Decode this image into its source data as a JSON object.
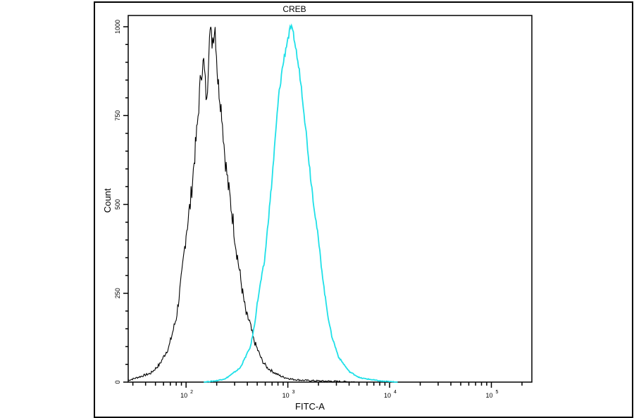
{
  "chart_data": {
    "type": "line",
    "title": "CREB",
    "xlabel": "FITC-A",
    "ylabel": "Count",
    "x_scale": "log",
    "xlim": [
      27,
      250000
    ],
    "ylim": [
      0,
      1000
    ],
    "x_ticks": [
      {
        "value": 100,
        "label": "10",
        "exp": "2"
      },
      {
        "value": 1000,
        "label": "10",
        "exp": "3"
      },
      {
        "value": 10000,
        "label": "10",
        "exp": "4"
      },
      {
        "value": 100000,
        "label": "10",
        "exp": "5"
      }
    ],
    "y_ticks": [
      "0",
      "250",
      "500",
      "750",
      "1000"
    ],
    "grid": false,
    "series": [
      {
        "color": "#000000",
        "points": [
          [
            27,
            5
          ],
          [
            35,
            15
          ],
          [
            45,
            25
          ],
          [
            55,
            50
          ],
          [
            68,
            100
          ],
          [
            80,
            180
          ],
          [
            91,
            300
          ],
          [
            100,
            420
          ],
          [
            110,
            500
          ],
          [
            120,
            620
          ],
          [
            129,
            720
          ],
          [
            140,
            870
          ],
          [
            149,
            900
          ],
          [
            160,
            780
          ],
          [
            170,
            1000
          ],
          [
            180,
            960
          ],
          [
            193,
            1000
          ],
          [
            205,
            850
          ],
          [
            224,
            760
          ],
          [
            240,
            640
          ],
          [
            260,
            550
          ],
          [
            285,
            470
          ],
          [
            310,
            380
          ],
          [
            340,
            300
          ],
          [
            360,
            250
          ],
          [
            390,
            190
          ],
          [
            420,
            170
          ],
          [
            460,
            120
          ],
          [
            490,
            100
          ],
          [
            560,
            60
          ],
          [
            630,
            40
          ],
          [
            750,
            25
          ],
          [
            880,
            15
          ],
          [
            1100,
            8
          ],
          [
            1420,
            5
          ],
          [
            2200,
            3
          ],
          [
            3160,
            2
          ],
          [
            5000,
            0
          ]
        ]
      },
      {
        "color": "#1fe0e8",
        "points": [
          [
            149,
            0
          ],
          [
            200,
            4
          ],
          [
            245,
            10
          ],
          [
            290,
            25
          ],
          [
            340,
            40
          ],
          [
            390,
            75
          ],
          [
            430,
            100
          ],
          [
            470,
            160
          ],
          [
            500,
            220
          ],
          [
            540,
            280
          ],
          [
            590,
            340
          ],
          [
            640,
            450
          ],
          [
            690,
            550
          ],
          [
            750,
            680
          ],
          [
            810,
            800
          ],
          [
            880,
            880
          ],
          [
            970,
            950
          ],
          [
            1070,
            1000
          ],
          [
            1150,
            970
          ],
          [
            1210,
            930
          ],
          [
            1320,
            860
          ],
          [
            1420,
            780
          ],
          [
            1540,
            680
          ],
          [
            1670,
            580
          ],
          [
            1800,
            500
          ],
          [
            1960,
            420
          ],
          [
            2130,
            330
          ],
          [
            2300,
            250
          ],
          [
            2500,
            180
          ],
          [
            2700,
            130
          ],
          [
            3160,
            70
          ],
          [
            4000,
            30
          ],
          [
            5100,
            12
          ],
          [
            8200,
            3
          ],
          [
            12000,
            0
          ]
        ]
      }
    ]
  }
}
